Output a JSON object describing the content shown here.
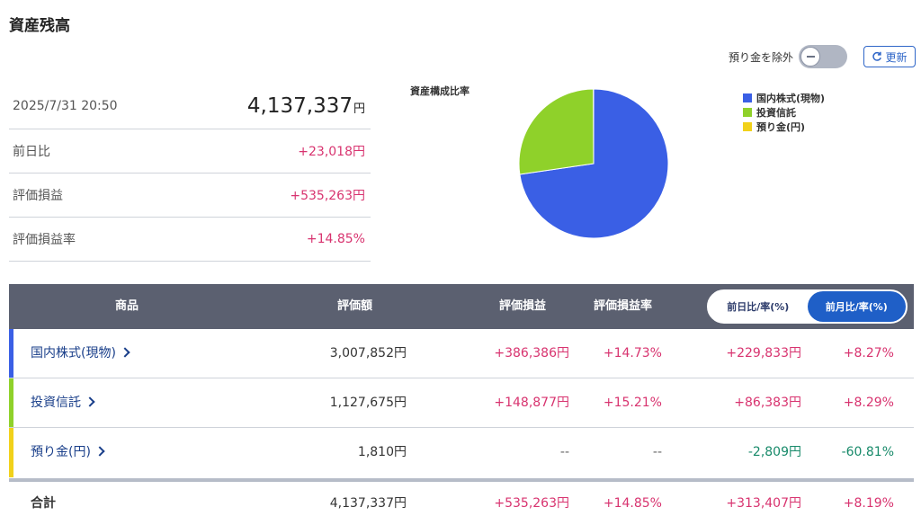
{
  "page": {
    "title": "資産残高"
  },
  "controls": {
    "exclude_deposit_label": "預り金を除外",
    "refresh_label": "更新"
  },
  "summary": {
    "timestamp": "2025/7/31 20:50",
    "total_value": "4,137,337",
    "total_unit": "円",
    "rows": [
      {
        "label": "前日比",
        "value": "+23,018円"
      },
      {
        "label": "評価損益",
        "value": "+535,263円"
      },
      {
        "label": "評価損益率",
        "value": "+14.85%"
      }
    ]
  },
  "chart": {
    "title": "資産構成比率",
    "legend": [
      {
        "label": "国内株式(現物)",
        "color": "#3a5fe5"
      },
      {
        "label": "投資信託",
        "color": "#8fd12a"
      },
      {
        "label": "預り金(円)",
        "color": "#f1d11a"
      }
    ]
  },
  "chart_data": {
    "type": "pie",
    "title": "資産構成比率",
    "labels": [
      "国内株式(現物)",
      "投資信託",
      "預り金(円)"
    ],
    "values": [
      3007852,
      1127675,
      1810
    ],
    "colors": [
      "#3a5fe5",
      "#8fd12a",
      "#f1d11a"
    ],
    "legend_position": "right"
  },
  "table": {
    "headers": {
      "product": "商品",
      "value": "評価額",
      "pl": "評価損益",
      "pl_rate": "評価損益率",
      "tab_day": "前日比/率(%)",
      "tab_month": "前月比/率(%)"
    },
    "rows": [
      {
        "name": "国内株式(現物)",
        "value": "3,007,852円",
        "pl": "+386,386円",
        "pl_rate": "+14.73%",
        "chg": "+229,833円",
        "chg_rate": "+8.27%",
        "bar_color": "#3a5fe5"
      },
      {
        "name": "投資信託",
        "value": "1,127,675円",
        "pl": "+148,877円",
        "pl_rate": "+15.21%",
        "chg": "+86,383円",
        "chg_rate": "+8.29%",
        "bar_color": "#8fd12a"
      },
      {
        "name": "預り金(円)",
        "value": "1,810円",
        "pl": "--",
        "pl_rate": "--",
        "chg": "-2,809円",
        "chg_rate": "-60.81%",
        "bar_color": "#f1d11a"
      }
    ],
    "total": {
      "label": "合計",
      "value": "4,137,337円",
      "pl": "+535,263円",
      "pl_rate": "+14.85%",
      "chg": "+313,407円",
      "chg_rate": "+8.19%"
    }
  }
}
